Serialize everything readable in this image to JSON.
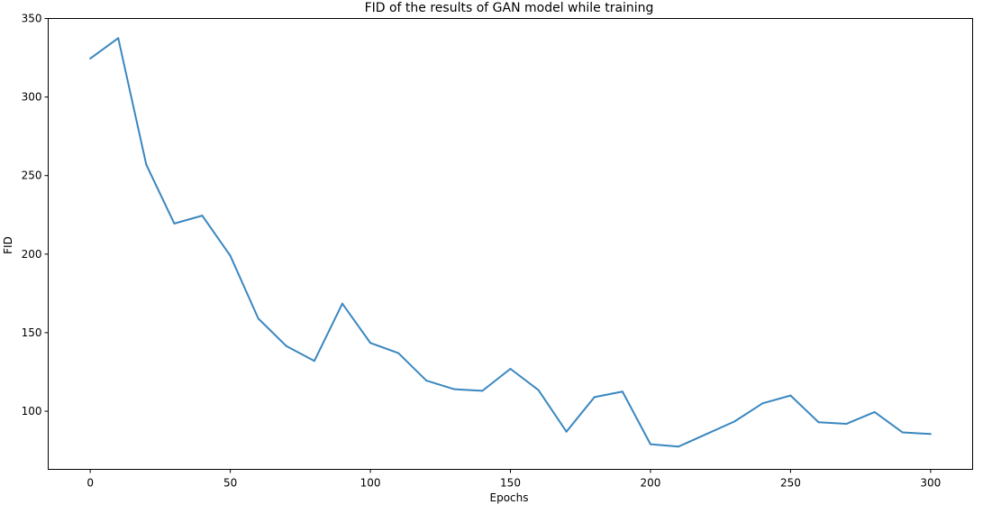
{
  "chart_data": {
    "type": "line",
    "title": "FID of the results of GAN model while training",
    "xlabel": "Epochs",
    "ylabel": "FID",
    "xlim": [
      -15,
      315
    ],
    "ylim": [
      63,
      350
    ],
    "x_ticks": [
      0,
      50,
      100,
      150,
      200,
      250,
      300
    ],
    "y_ticks": [
      100,
      150,
      200,
      250,
      300,
      350
    ],
    "grid": false,
    "legend": "none",
    "series": [
      {
        "color": "#3a87c0",
        "x": [
          0,
          10,
          20,
          30,
          40,
          50,
          60,
          70,
          80,
          90,
          100,
          110,
          120,
          130,
          140,
          150,
          160,
          170,
          180,
          190,
          200,
          210,
          220,
          230,
          240,
          250,
          260,
          270,
          280,
          290,
          300
        ],
        "y": [
          324.5,
          337.5,
          257,
          219.5,
          224.5,
          199,
          159,
          141.5,
          132,
          168.5,
          143.5,
          137,
          119.5,
          114,
          113,
          127,
          113.5,
          87,
          109,
          112.5,
          79,
          77.5,
          85.5,
          93.5,
          105,
          110,
          93,
          92,
          99.5,
          86.5,
          85.5
        ]
      }
    ]
  }
}
